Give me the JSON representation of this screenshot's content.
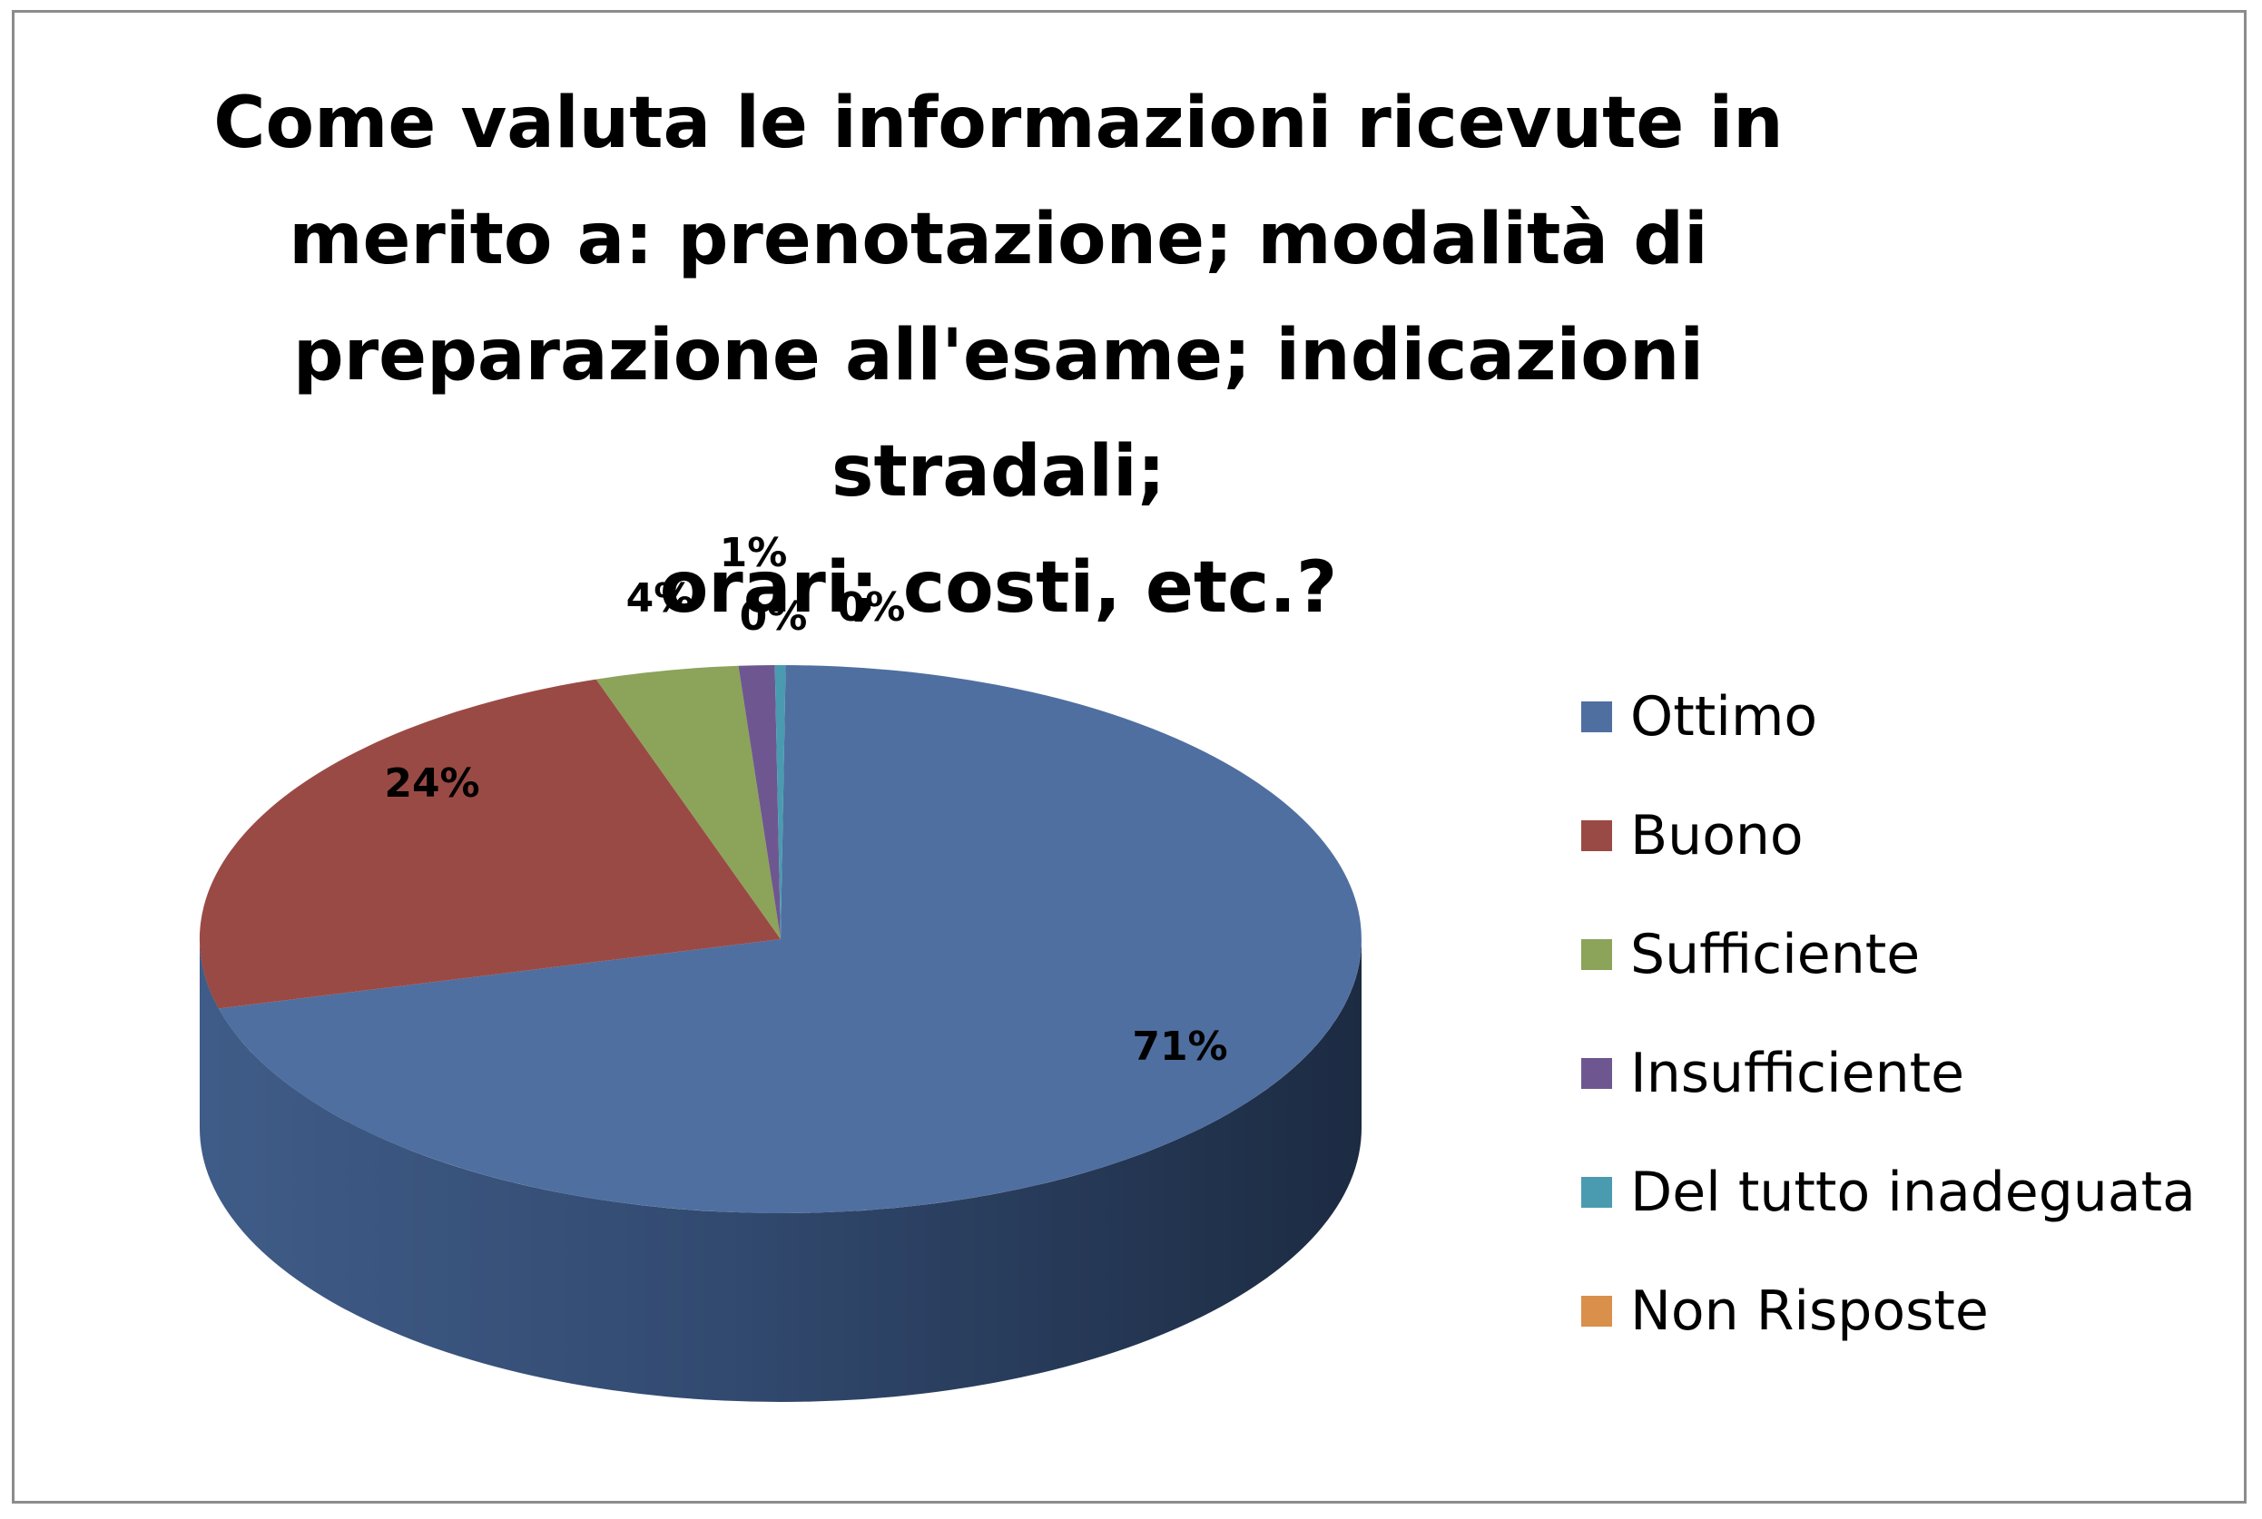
{
  "chart_data": {
    "type": "pie",
    "title": "Come valuta le informazioni ricevute in\nmerito a: prenotazione;  modalità di\npreparazione all'esame; indicazioni stradali;\norari; costi, etc.?",
    "legend_position": "right",
    "slices": [
      {
        "label": "Ottimo",
        "value": 71,
        "display": "71%",
        "color": "#4f6fa0"
      },
      {
        "label": "Buono",
        "value": 24,
        "display": "24%",
        "color": "#9a4a45"
      },
      {
        "label": "Sufficiente",
        "value": 4,
        "display": "4%",
        "color": "#8ca35a"
      },
      {
        "label": "Insufficiente",
        "value": 1,
        "display": "1%",
        "color": "#6e5790"
      },
      {
        "label": "Del tutto inadeguata",
        "value": 0.3,
        "display": "0%",
        "color": "#4a9bb0"
      },
      {
        "label": "Non Risposte",
        "value": 0,
        "display": "0%",
        "color": "#d9904a"
      }
    ]
  }
}
